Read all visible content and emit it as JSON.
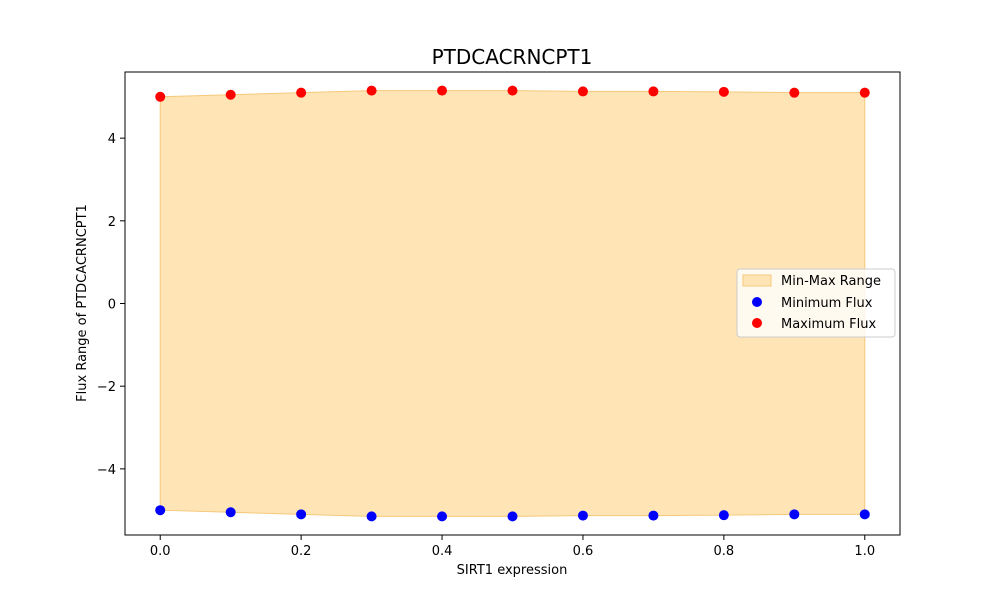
{
  "chart_data": {
    "type": "scatter",
    "title": "PTDCACRNCPT1",
    "xlabel": "SIRT1 expression",
    "ylabel": "Flux Range of PTDCACRNCPT1",
    "xlim": [
      -0.05,
      1.05
    ],
    "ylim": [
      -5.6,
      5.6
    ],
    "x_ticks": [
      0.0,
      0.2,
      0.4,
      0.6,
      0.8,
      1.0
    ],
    "x_tick_labels": [
      "0.0",
      "0.2",
      "0.4",
      "0.6",
      "0.8",
      "1.0"
    ],
    "y_ticks": [
      -4,
      -2,
      0,
      2,
      4
    ],
    "y_tick_labels": [
      "−4",
      "−2",
      "0",
      "2",
      "4"
    ],
    "grid": false,
    "legend_position": "center-right",
    "x": [
      0.0,
      0.1,
      0.2,
      0.3,
      0.4,
      0.5,
      0.6,
      0.7,
      0.8,
      0.9,
      1.0
    ],
    "series": [
      {
        "name": "Min-Max Range",
        "kind": "fill_between",
        "color": "#ffe4b5",
        "edge_color": "#f5c97a"
      },
      {
        "name": "Minimum Flux",
        "kind": "scatter",
        "color": "#0000ff",
        "values": [
          -5.0,
          -5.05,
          -5.1,
          -5.15,
          -5.15,
          -5.15,
          -5.13,
          -5.13,
          -5.12,
          -5.1,
          -5.1
        ]
      },
      {
        "name": "Maximum Flux",
        "kind": "scatter",
        "color": "#ff0000",
        "values": [
          5.0,
          5.05,
          5.1,
          5.15,
          5.15,
          5.15,
          5.13,
          5.13,
          5.12,
          5.1,
          5.1
        ]
      }
    ]
  }
}
